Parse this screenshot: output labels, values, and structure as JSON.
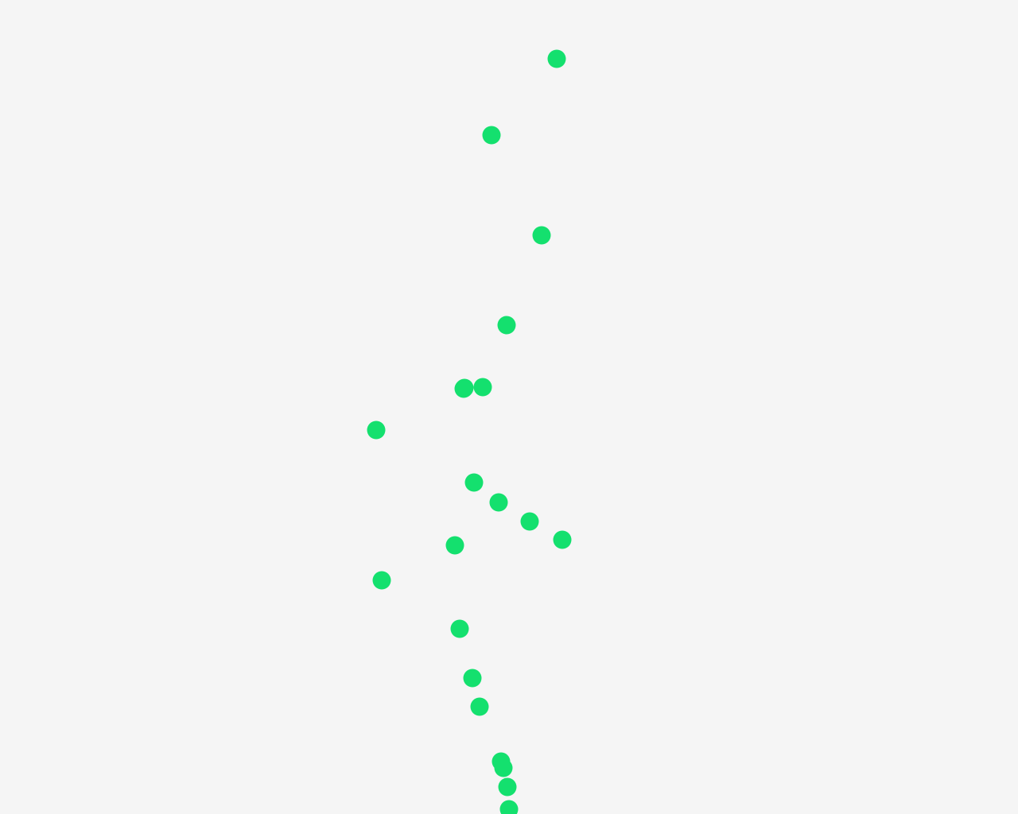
{
  "scene": {
    "background_color": "#f5f5f5",
    "dot_color": "#14e06e",
    "dot_count": 21
  }
}
